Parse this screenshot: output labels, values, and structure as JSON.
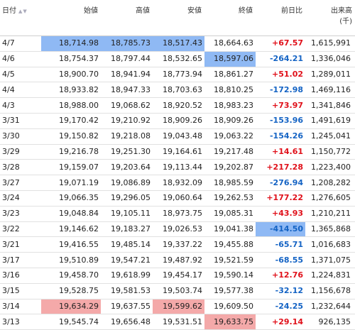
{
  "headers": {
    "date": "日付",
    "open": "始値",
    "high": "高値",
    "low": "安値",
    "close": "終値",
    "change": "前日比",
    "volume": "出来高",
    "volume_unit": "(千)"
  },
  "icons": {
    "sort": "sort-arrows-icon"
  },
  "colors": {
    "positive": "#e0101a",
    "negative": "#1463c4",
    "highlight_blue": "#8fb9f4",
    "highlight_red": "#f4a9a9"
  },
  "rows": [
    {
      "date": "4/7",
      "open": "18,714.98",
      "high": "18,785.73",
      "low": "18,517.43",
      "close": "18,664.63",
      "change": "+67.57",
      "volume": "1,615,991",
      "sign": "pos",
      "hl": {
        "open": "blue",
        "high": "blue",
        "low": "blue"
      }
    },
    {
      "date": "4/6",
      "open": "18,754.37",
      "high": "18,797.44",
      "low": "18,532.65",
      "close": "18,597.06",
      "change": "-264.21",
      "volume": "1,336,046",
      "sign": "neg",
      "hl": {
        "close": "blue"
      }
    },
    {
      "date": "4/5",
      "open": "18,900.70",
      "high": "18,941.94",
      "low": "18,773.94",
      "close": "18,861.27",
      "change": "+51.02",
      "volume": "1,289,011",
      "sign": "pos",
      "hl": {}
    },
    {
      "date": "4/4",
      "open": "18,933.82",
      "high": "18,947.33",
      "low": "18,703.63",
      "close": "18,810.25",
      "change": "-172.98",
      "volume": "1,469,116",
      "sign": "neg",
      "hl": {}
    },
    {
      "date": "4/3",
      "open": "18,988.00",
      "high": "19,068.62",
      "low": "18,920.52",
      "close": "18,983.23",
      "change": "+73.97",
      "volume": "1,341,846",
      "sign": "pos",
      "hl": {}
    },
    {
      "date": "3/31",
      "open": "19,170.42",
      "high": "19,210.92",
      "low": "18,909.26",
      "close": "18,909.26",
      "change": "-153.96",
      "volume": "1,491,619",
      "sign": "neg",
      "hl": {}
    },
    {
      "date": "3/30",
      "open": "19,150.82",
      "high": "19,218.08",
      "low": "19,043.48",
      "close": "19,063.22",
      "change": "-154.26",
      "volume": "1,245,041",
      "sign": "neg",
      "hl": {}
    },
    {
      "date": "3/29",
      "open": "19,216.78",
      "high": "19,251.30",
      "low": "19,164.61",
      "close": "19,217.48",
      "change": "+14.61",
      "volume": "1,150,772",
      "sign": "pos",
      "hl": {}
    },
    {
      "date": "3/28",
      "open": "19,159.07",
      "high": "19,203.64",
      "low": "19,113.44",
      "close": "19,202.87",
      "change": "+217.28",
      "volume": "1,223,400",
      "sign": "pos",
      "hl": {}
    },
    {
      "date": "3/27",
      "open": "19,071.19",
      "high": "19,086.89",
      "low": "18,932.09",
      "close": "18,985.59",
      "change": "-276.94",
      "volume": "1,208,282",
      "sign": "neg",
      "hl": {}
    },
    {
      "date": "3/24",
      "open": "19,066.35",
      "high": "19,296.05",
      "low": "19,060.64",
      "close": "19,262.53",
      "change": "+177.22",
      "volume": "1,276,605",
      "sign": "pos",
      "hl": {}
    },
    {
      "date": "3/23",
      "open": "19,048.84",
      "high": "19,105.11",
      "low": "18,973.75",
      "close": "19,085.31",
      "change": "+43.93",
      "volume": "1,210,211",
      "sign": "pos",
      "hl": {}
    },
    {
      "date": "3/22",
      "open": "19,146.62",
      "high": "19,183.27",
      "low": "19,026.53",
      "close": "19,041.38",
      "change": "-414.50",
      "volume": "1,365,868",
      "sign": "neg",
      "hl": {
        "change": "blue"
      }
    },
    {
      "date": "3/21",
      "open": "19,416.55",
      "high": "19,485.14",
      "low": "19,337.22",
      "close": "19,455.88",
      "change": "-65.71",
      "volume": "1,016,683",
      "sign": "neg",
      "hl": {}
    },
    {
      "date": "3/17",
      "open": "19,510.89",
      "high": "19,547.21",
      "low": "19,487.92",
      "close": "19,521.59",
      "change": "-68.55",
      "volume": "1,371,075",
      "sign": "neg",
      "hl": {}
    },
    {
      "date": "3/16",
      "open": "19,458.70",
      "high": "19,618.99",
      "low": "19,454.17",
      "close": "19,590.14",
      "change": "+12.76",
      "volume": "1,224,831",
      "sign": "pos",
      "hl": {}
    },
    {
      "date": "3/15",
      "open": "19,528.75",
      "high": "19,581.53",
      "low": "19,503.74",
      "close": "19,577.38",
      "change": "-32.12",
      "volume": "1,156,678",
      "sign": "neg",
      "hl": {}
    },
    {
      "date": "3/14",
      "open": "19,634.29",
      "high": "19,637.55",
      "low": "19,599.62",
      "close": "19,609.50",
      "change": "-24.25",
      "volume": "1,232,644",
      "sign": "neg",
      "hl": {
        "open": "red",
        "low": "red"
      }
    },
    {
      "date": "3/13",
      "open": "19,545.74",
      "high": "19,656.48",
      "low": "19,531.51",
      "close": "19,633.75",
      "change": "+29.14",
      "volume": "926,135",
      "sign": "pos",
      "hl": {
        "close": "red"
      }
    }
  ]
}
